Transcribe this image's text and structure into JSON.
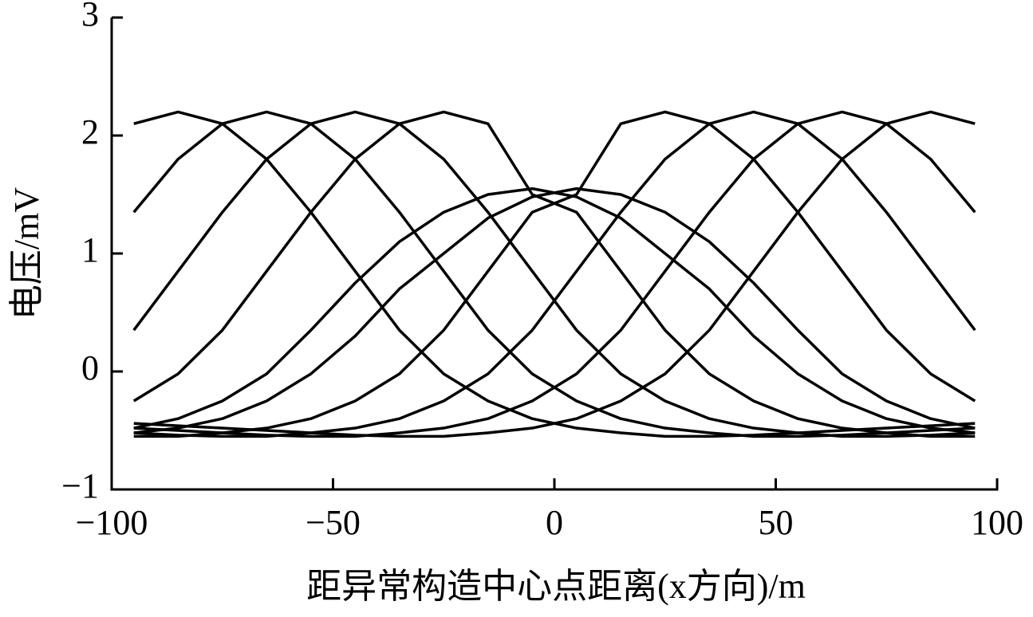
{
  "chart_data": {
    "type": "line",
    "xlabel": "距异常构造中心点距离(x方向)/m",
    "ylabel": "电压/mV",
    "color": "#000000",
    "x": [
      -95,
      -85,
      -75,
      -65,
      -55,
      -45,
      -35,
      -25,
      -15,
      -5,
      5,
      15,
      25,
      35,
      45,
      55,
      65,
      75,
      85,
      95
    ],
    "series": [
      {
        "values": [
          2.1,
          2.2,
          2.1,
          1.8,
          1.35,
          0.85,
          0.35,
          -0.02,
          -0.25,
          -0.4,
          -0.48,
          -0.52,
          -0.55,
          -0.55,
          -0.54,
          -0.52,
          -0.5,
          -0.48,
          -0.46,
          -0.44
        ]
      },
      {
        "values": [
          1.35,
          1.8,
          2.1,
          2.2,
          2.1,
          1.8,
          1.35,
          0.85,
          0.35,
          -0.02,
          -0.25,
          -0.4,
          -0.48,
          -0.52,
          -0.55,
          -0.55,
          -0.54,
          -0.52,
          -0.5,
          -0.48
        ]
      },
      {
        "values": [
          0.35,
          0.85,
          1.35,
          1.8,
          2.1,
          2.2,
          2.1,
          1.8,
          1.35,
          0.85,
          0.35,
          -0.02,
          -0.25,
          -0.4,
          -0.48,
          -0.52,
          -0.55,
          -0.55,
          -0.54,
          -0.52
        ]
      },
      {
        "values": [
          -0.25,
          -0.02,
          0.35,
          0.85,
          1.35,
          1.8,
          2.1,
          2.2,
          2.1,
          1.5,
          1.35,
          0.85,
          0.35,
          -0.02,
          -0.25,
          -0.4,
          -0.48,
          -0.52,
          -0.55,
          -0.55
        ]
      },
      {
        "values": [
          -0.48,
          -0.4,
          -0.25,
          -0.02,
          0.35,
          0.75,
          1.1,
          1.35,
          1.5,
          1.55,
          1.48,
          1.3,
          1.0,
          0.7,
          0.3,
          -0.02,
          -0.25,
          -0.4,
          -0.48,
          -0.52
        ]
      },
      {
        "values": [
          -0.52,
          -0.48,
          -0.4,
          -0.25,
          -0.02,
          0.3,
          0.7,
          1.0,
          1.3,
          1.48,
          1.55,
          1.5,
          1.35,
          1.1,
          0.75,
          0.35,
          -0.02,
          -0.25,
          -0.4,
          -0.48
        ]
      },
      {
        "values": [
          -0.55,
          -0.55,
          -0.52,
          -0.48,
          -0.4,
          -0.25,
          -0.02,
          0.35,
          0.85,
          1.35,
          1.5,
          2.1,
          2.2,
          2.1,
          1.8,
          1.35,
          0.85,
          0.35,
          -0.02,
          -0.25
        ]
      },
      {
        "values": [
          -0.52,
          -0.54,
          -0.55,
          -0.55,
          -0.52,
          -0.48,
          -0.4,
          -0.25,
          -0.02,
          0.35,
          0.85,
          1.35,
          1.8,
          2.1,
          2.2,
          2.1,
          1.8,
          1.35,
          0.85,
          0.35
        ]
      },
      {
        "values": [
          -0.48,
          -0.5,
          -0.52,
          -0.54,
          -0.55,
          -0.55,
          -0.52,
          -0.48,
          -0.4,
          -0.25,
          -0.02,
          0.35,
          0.85,
          1.35,
          1.8,
          2.1,
          2.2,
          2.1,
          1.8,
          1.35
        ]
      },
      {
        "values": [
          -0.44,
          -0.46,
          -0.48,
          -0.5,
          -0.52,
          -0.54,
          -0.55,
          -0.55,
          -0.52,
          -0.48,
          -0.4,
          -0.25,
          -0.02,
          0.35,
          0.85,
          1.35,
          1.8,
          2.1,
          2.2,
          2.1
        ]
      }
    ],
    "xlim": [
      -100,
      100
    ],
    "xticks": [
      {
        "value": -100,
        "label": "−100"
      },
      {
        "value": -50,
        "label": "−50"
      },
      0,
      50,
      100
    ],
    "ylim": [
      -1,
      3
    ],
    "yticks": [
      {
        "value": -1,
        "label": "−1"
      },
      0,
      1,
      2,
      3
    ]
  }
}
